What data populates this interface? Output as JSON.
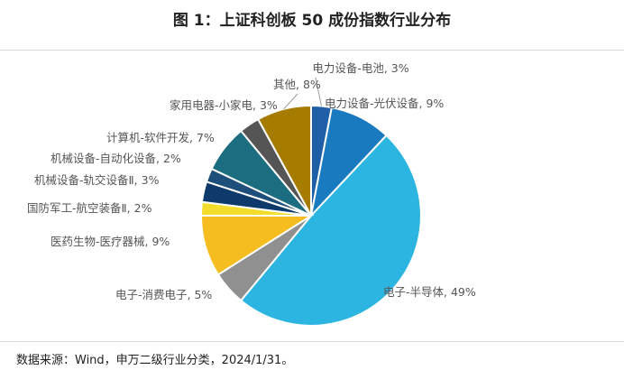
{
  "title": "图 1：上证科创板 50 成份指数行业分布",
  "source": "数据来源：Wind，申万二级行业分类，2024/1/31。",
  "chart_data": {
    "type": "pie",
    "slices": [
      {
        "label": "电力设备-电池, 3%",
        "value": 3,
        "color": "#1f5fa8"
      },
      {
        "label": "电力设备-光伏设备, 9%",
        "value": 9,
        "color": "#1a7abf"
      },
      {
        "label": "电子-半导体, 49%",
        "value": 49,
        "color": "#2bb5e0"
      },
      {
        "label": "电子-消费电子, 5%",
        "value": 5,
        "color": "#909090"
      },
      {
        "label": "医药生物-医疗器械, 9%",
        "value": 9,
        "color": "#f5bd1f"
      },
      {
        "label": "国防军工-航空装备Ⅱ, 2%",
        "value": 2,
        "color": "#f4dc2c"
      },
      {
        "label": "机械设备-轨交设备Ⅱ, 3%",
        "value": 3,
        "color": "#0d3a6b"
      },
      {
        "label": "机械设备-自动化设备, 2%",
        "value": 2,
        "color": "#1e4f7a"
      },
      {
        "label": "计算机-软件开发, 7%",
        "value": 7,
        "color": "#1c6d80"
      },
      {
        "label": "家用电器-小家电, 3%",
        "value": 3,
        "color": "#555555"
      },
      {
        "label": "其他, 8%",
        "value": 8,
        "color": "#a67c00"
      }
    ]
  }
}
